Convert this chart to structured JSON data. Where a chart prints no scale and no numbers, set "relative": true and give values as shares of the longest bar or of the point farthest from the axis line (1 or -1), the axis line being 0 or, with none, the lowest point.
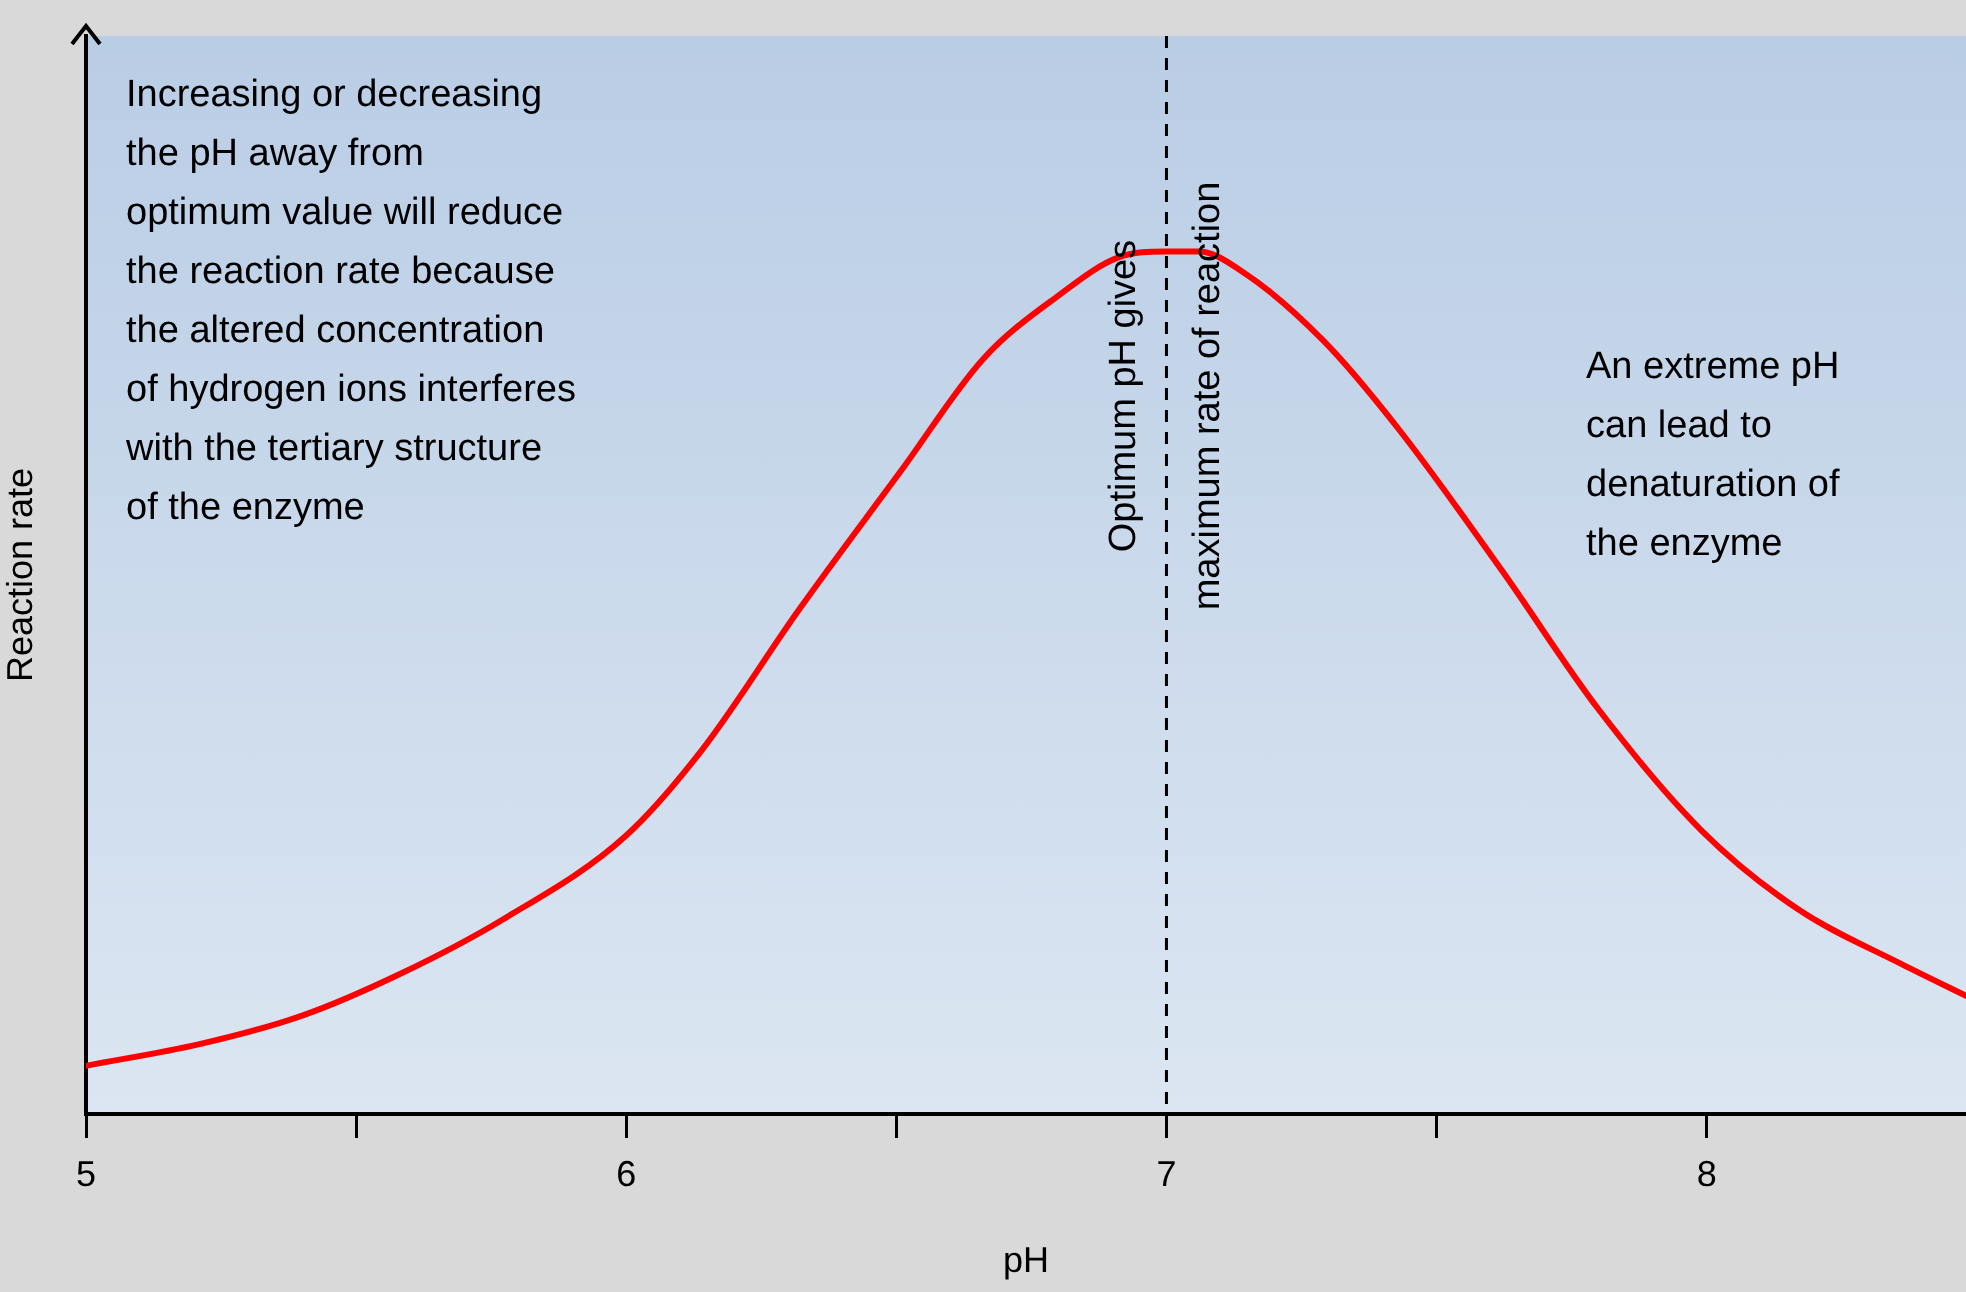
{
  "chart_data": {
    "type": "line",
    "xlabel": "pH",
    "ylabel": "Reaction rate",
    "relative": true,
    "x": [
      5,
      5.21,
      5.4,
      5.58,
      5.77,
      6,
      6.14,
      6.32,
      6.51,
      6.66,
      6.8,
      6.91,
      7,
      7.06,
      7.14,
      7.29,
      7.43,
      7.62,
      7.8,
      7.99,
      8.17,
      8.36,
      8.48
    ],
    "series": [
      {
        "color": "#ff0000",
        "values": [
          0.056,
          0.081,
          0.114,
          0.162,
          0.225,
          0.323,
          0.422,
          0.585,
          0.747,
          0.875,
          0.949,
          0.993,
          1,
          1,
          0.977,
          0.897,
          0.794,
          0.631,
          0.469,
          0.329,
          0.237,
          0.174,
          0.137
        ]
      }
    ],
    "xlim": [
      5,
      8.48
    ],
    "xticks": [
      5,
      {
        "value": 5.5,
        "label": null
      },
      6,
      {
        "value": 6.5,
        "label": null
      },
      7,
      {
        "value": 7.5,
        "label": null
      },
      8
    ],
    "ref_lines": [
      {
        "axis": "x",
        "value": 7,
        "label": "Optimum pH gives\nmaximum rate of reaction",
        "color": "#000000",
        "line_style": "dashed"
      }
    ],
    "annotations": [
      "Increasing or decreasing\nthe pH away from\noptimum value will reduce\nthe reaction rate because\nthe altered concentration\nof hydrogen ions interferes\nwith the tertiary structure\nof the enzyme",
      "An extreme pH\ncan lead to\ndenaturation of\nthe enzyme"
    ],
    "grid": false,
    "legend": false,
    "marker": "none",
    "line_style": "solid"
  }
}
